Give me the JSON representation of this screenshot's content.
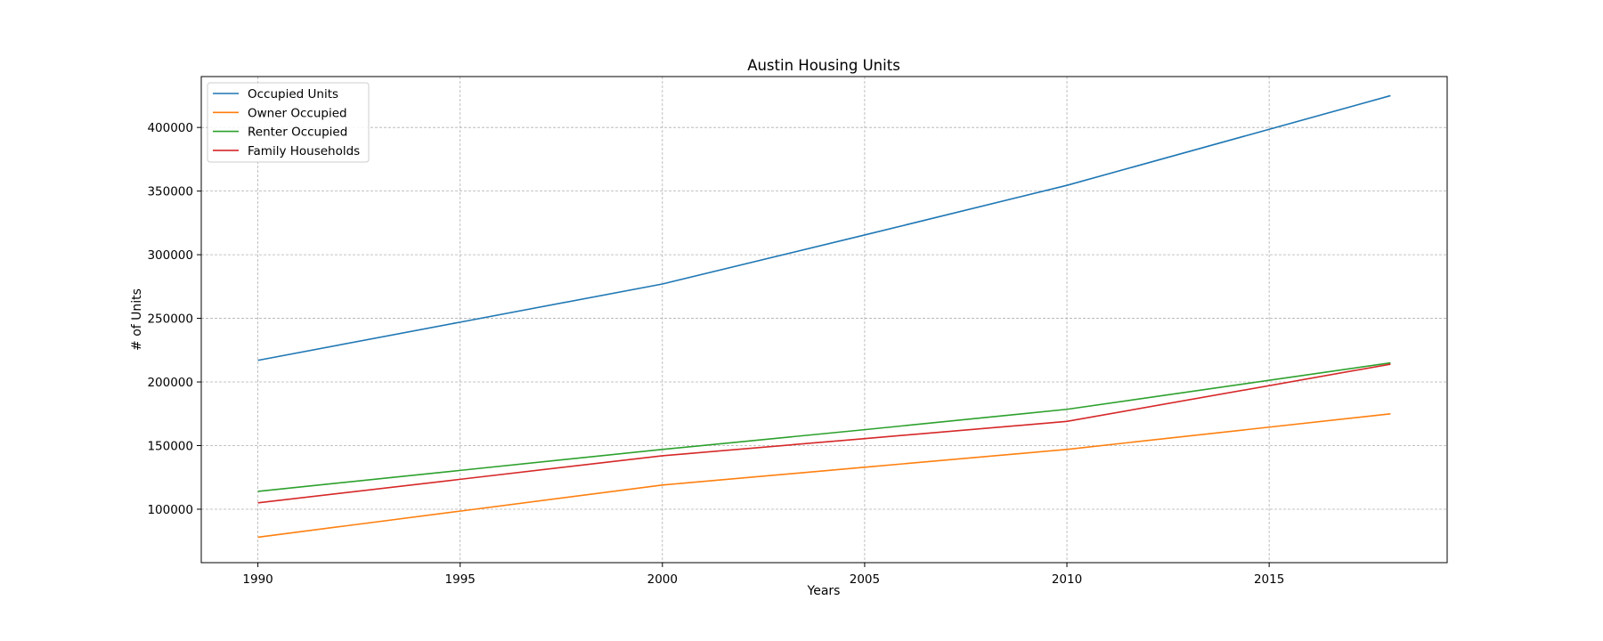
{
  "chart_data": {
    "type": "line",
    "title": "Austin Housing Units",
    "xlabel": "Years",
    "ylabel": "# of Units",
    "xlim": [
      1988.6,
      2019.4
    ],
    "ylim": [
      58000,
      440000
    ],
    "xticks": [
      1990,
      1995,
      2000,
      2005,
      2010,
      2015
    ],
    "xtick_labels": [
      "1990",
      "1995",
      "2000",
      "2005",
      "2010",
      "2015"
    ],
    "yticks": [
      100000,
      150000,
      200000,
      250000,
      300000,
      350000,
      400000
    ],
    "ytick_labels": [
      "100000",
      "150000",
      "200000",
      "250000",
      "300000",
      "350000",
      "400000"
    ],
    "grid": true,
    "legend_position": "top-left",
    "x": [
      1990,
      1995,
      2000,
      2005,
      2010,
      2018
    ],
    "series": [
      {
        "name": "Occupied Units",
        "color": "#1f77b4",
        "values": [
          217000,
          247000,
          277000,
          315500,
          354500,
          425000
        ]
      },
      {
        "name": "Owner Occupied",
        "color": "#ff7f0e",
        "values": [
          78000,
          98500,
          119000,
          133000,
          147000,
          175000
        ]
      },
      {
        "name": "Renter Occupied",
        "color": "#2ca02c",
        "values": [
          114000,
          130500,
          147000,
          162500,
          178500,
          215000
        ]
      },
      {
        "name": "Family Households",
        "color": "#d62728",
        "values": [
          105000,
          123500,
          142000,
          155500,
          169000,
          214000
        ]
      }
    ]
  }
}
